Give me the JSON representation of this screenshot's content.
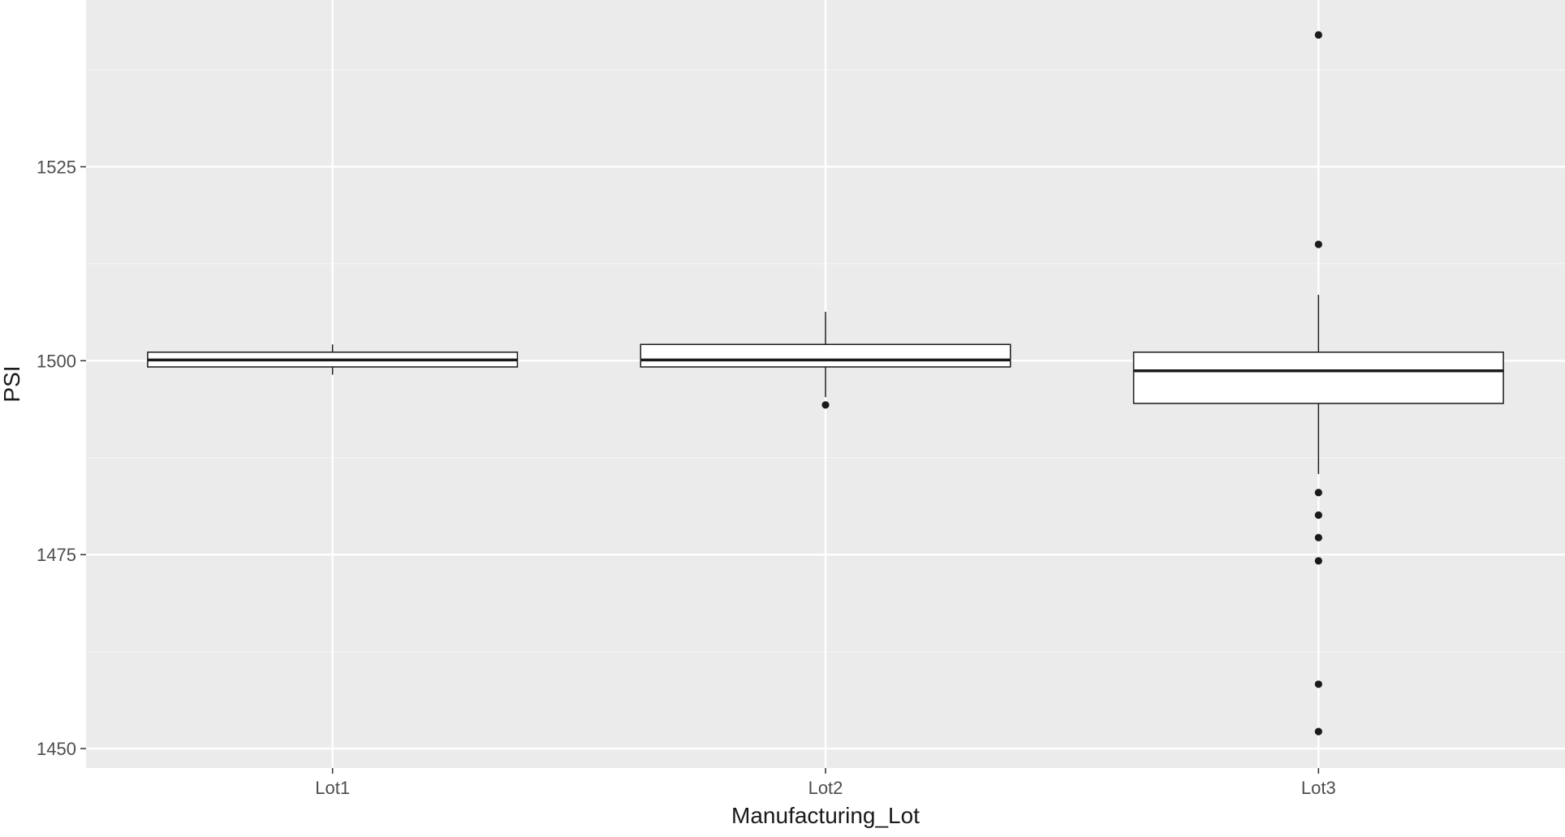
{
  "chart_data": {
    "type": "boxplot",
    "title": "",
    "xlabel": "Manufacturing_Lot",
    "ylabel": "PSI",
    "categories": [
      "Lot1",
      "Lot2",
      "Lot3"
    ],
    "ylim": [
      1447.5,
      1546.5
    ],
    "y_ticks": [
      1450,
      1475,
      1500,
      1525
    ],
    "grid": true,
    "legend": "none",
    "boxes": [
      {
        "category": "Lot1",
        "whisker_low": 1498.2,
        "q1": 1499.2,
        "median": 1500.1,
        "q3": 1501.1,
        "whisker_high": 1502.1,
        "outliers": []
      },
      {
        "category": "Lot2",
        "whisker_low": 1495.3,
        "q1": 1499.2,
        "median": 1500.1,
        "q3": 1502.1,
        "whisker_high": 1506.3,
        "outliers": [
          1494.3
        ]
      },
      {
        "category": "Lot3",
        "whisker_low": 1485.4,
        "q1": 1494.5,
        "median": 1498.7,
        "q3": 1501.1,
        "whisker_high": 1508.5,
        "outliers": [
          1542.0,
          1515.0,
          1483.0,
          1480.1,
          1477.2,
          1474.2,
          1458.3,
          1452.2
        ]
      }
    ],
    "colors": {
      "panel_background": "#EBEBEB",
      "grid_major": "#FFFFFF",
      "grid_minor": "#F5F5F5",
      "box_fill": "#FFFFFF",
      "box_stroke": "#1A1A1A",
      "outlier": "#1A1A1A",
      "tick_text": "#4D4D4D",
      "axis_title": "#1A1A1A"
    }
  }
}
